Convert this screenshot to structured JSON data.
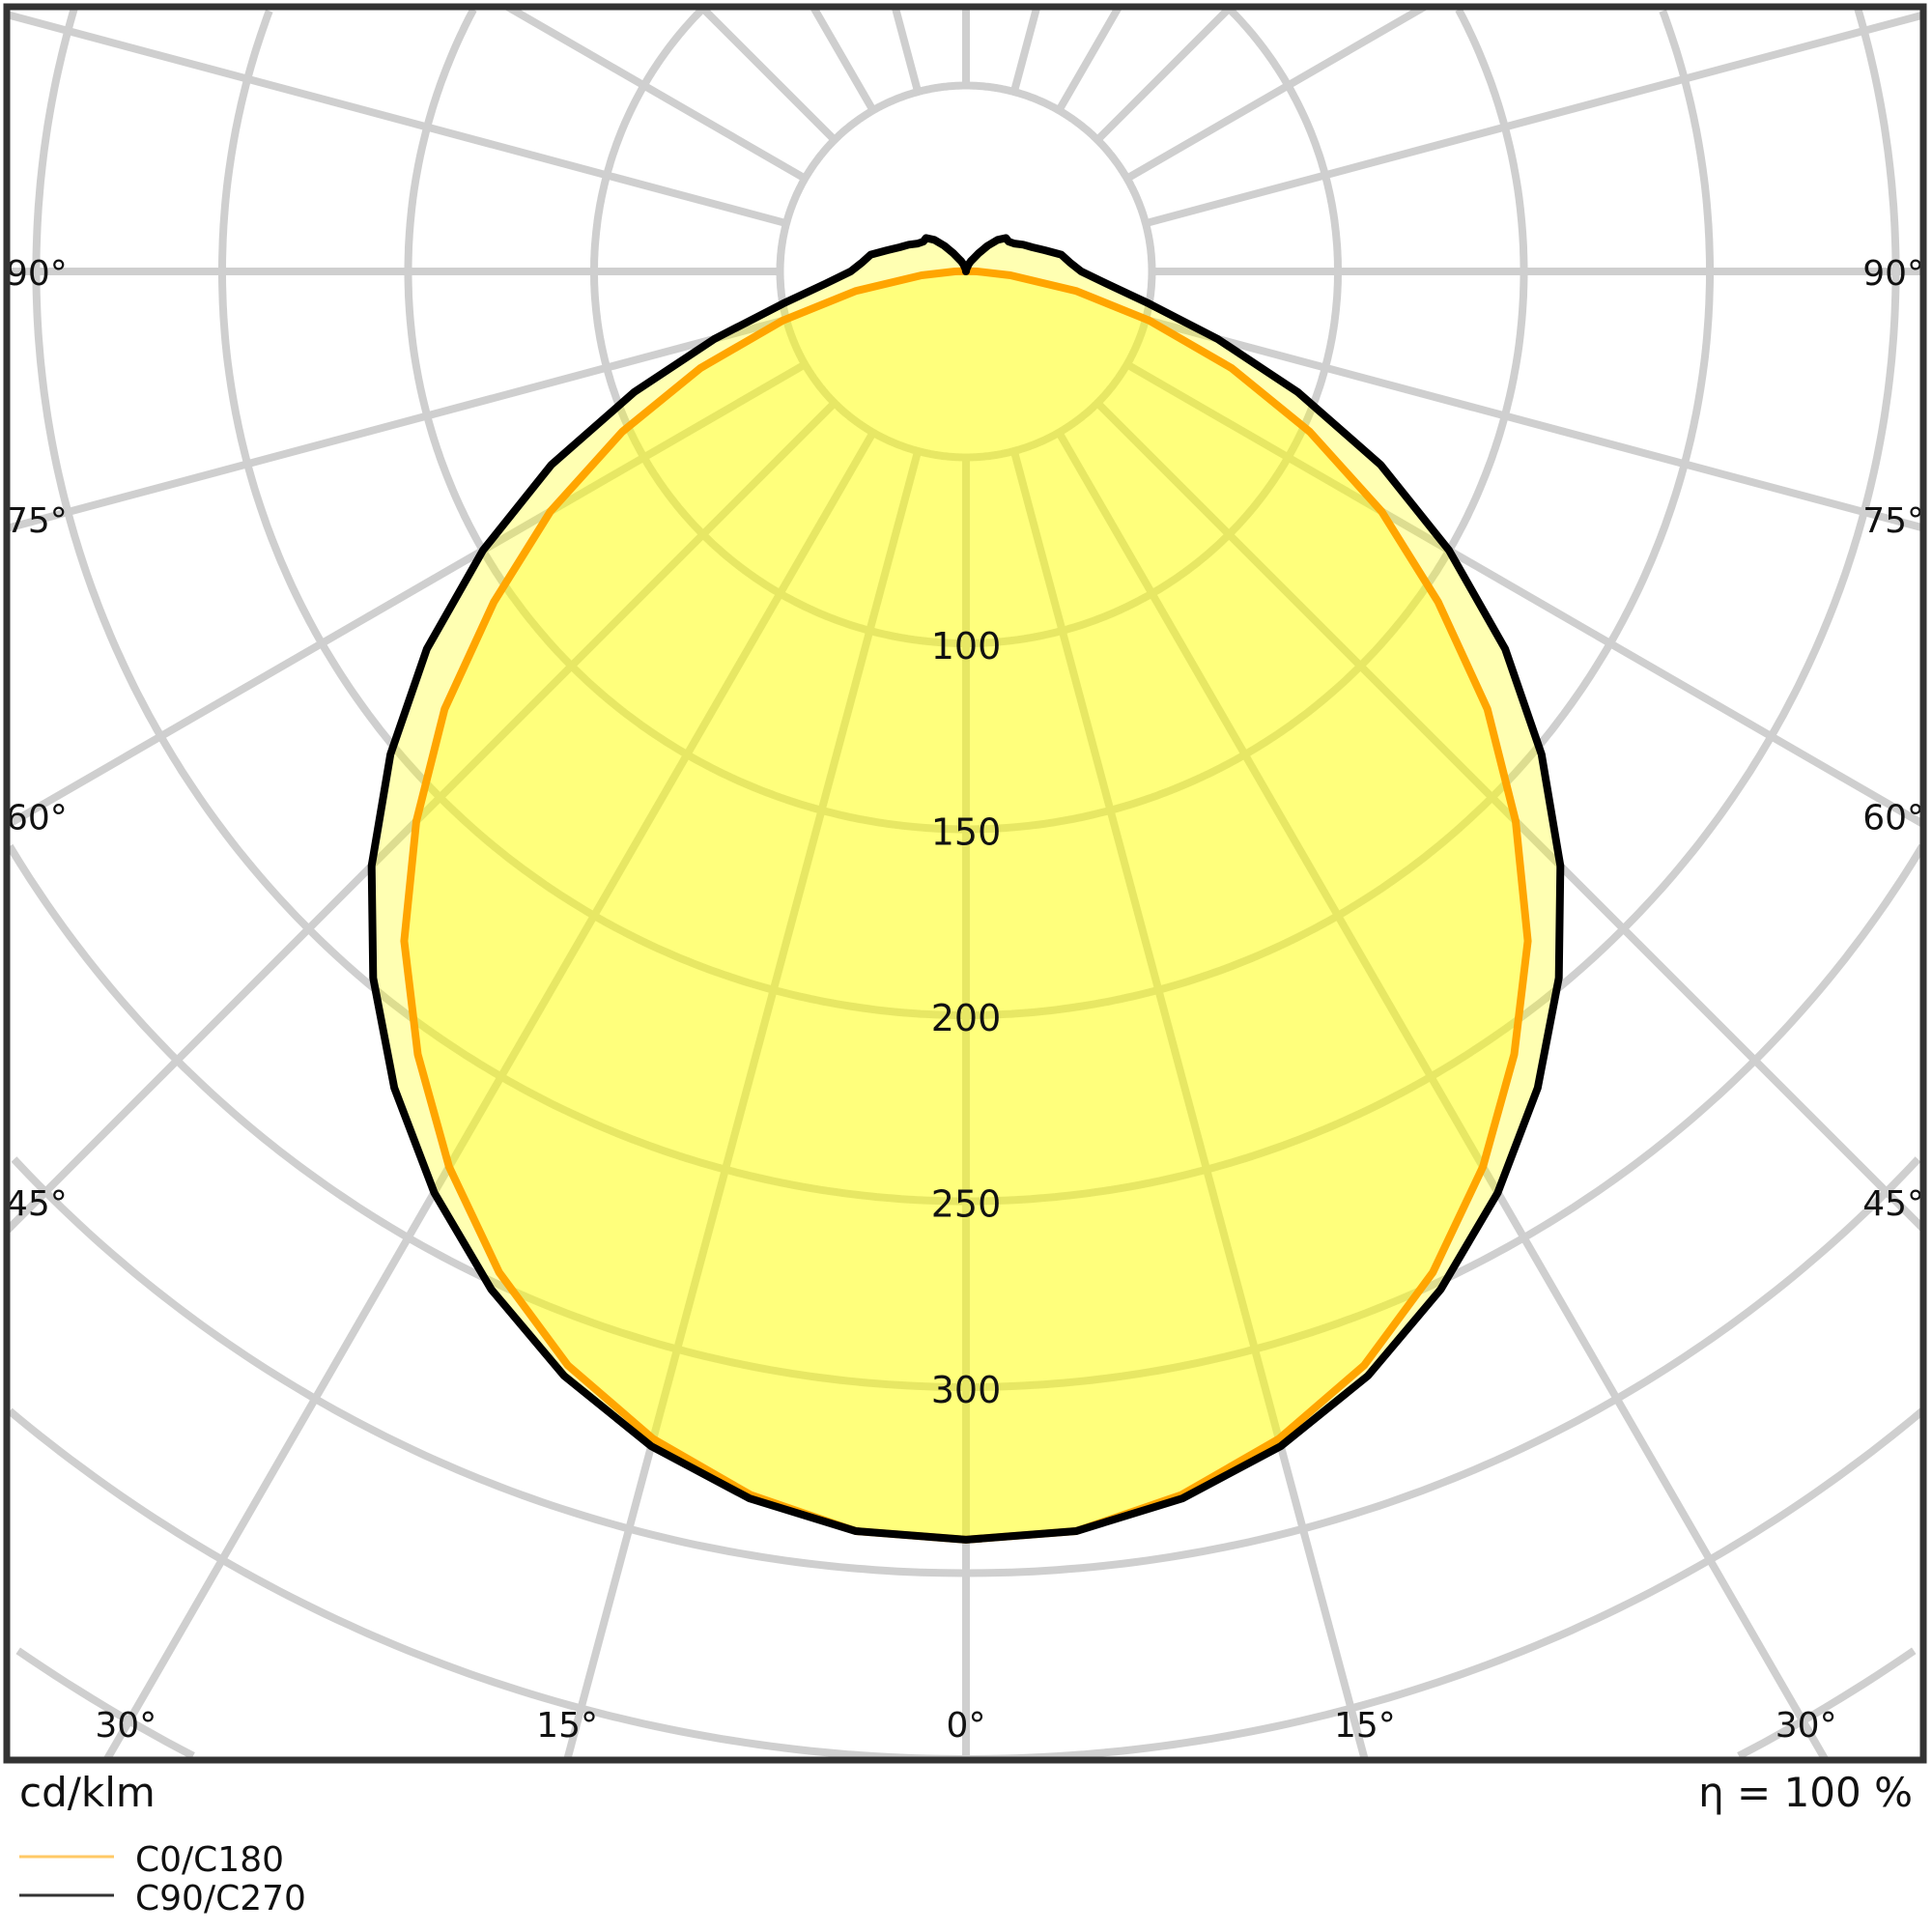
{
  "chart_data": {
    "type": "polar",
    "unit_label": "cd/klm",
    "efficiency_label": "η = 100 %",
    "radial_ticks": [
      50,
      100,
      150,
      200,
      250,
      300,
      350,
      400,
      450,
      500
    ],
    "radial_tick_labels": [
      "100",
      "150",
      "200",
      "250",
      "300"
    ],
    "radial_labeled_values": [
      100,
      150,
      200,
      250,
      300
    ],
    "angle_step_deg": 15,
    "side_tick_labels": {
      "left": [
        "90°",
        "75°",
        "60°",
        "45°"
      ],
      "right": [
        "90°",
        "75°",
        "60°",
        "45°"
      ],
      "angles": [
        90,
        75,
        60,
        45
      ]
    },
    "bottom_tick_labels": {
      "labels": [
        "30°",
        "15°",
        "0°",
        "15°",
        "30°"
      ],
      "angles": [
        -30,
        -15,
        0,
        15,
        30
      ]
    },
    "grid": true,
    "legend_placement": "bottom-left",
    "gamma_deg": [
      0,
      5,
      10,
      15,
      20,
      25,
      30,
      35,
      40,
      45,
      50,
      55,
      60,
      65,
      70,
      75,
      80,
      85,
      90,
      95,
      100,
      105,
      110,
      115,
      120,
      125,
      130,
      135,
      140,
      145,
      150,
      155,
      160,
      165,
      170,
      175,
      180
    ],
    "series": [
      {
        "name": "C0/C180",
        "color": "#ffa500",
        "values": [
          341,
          340,
          334,
          325,
          313,
          297,
          278,
          257,
          235,
          209,
          183,
          155,
          129,
          102,
          76,
          51,
          30,
          12,
          3,
          1,
          0,
          0,
          0,
          0,
          0,
          0,
          0,
          0,
          0,
          0,
          0,
          0,
          0,
          0,
          0,
          0,
          0
        ]
      },
      {
        "name": "C90/C270",
        "color": "#000000",
        "values": [
          341,
          340,
          335,
          327,
          316,
          302,
          286,
          268,
          248,
          226,
          202,
          177,
          150,
          123,
          95,
          70,
          50,
          38,
          31,
          28,
          26,
          22,
          19,
          17,
          15,
          14,
          14,
          12,
          9,
          6,
          4,
          3,
          2,
          1,
          1,
          0,
          0
        ]
      }
    ],
    "fill_color": "#ffff00"
  }
}
